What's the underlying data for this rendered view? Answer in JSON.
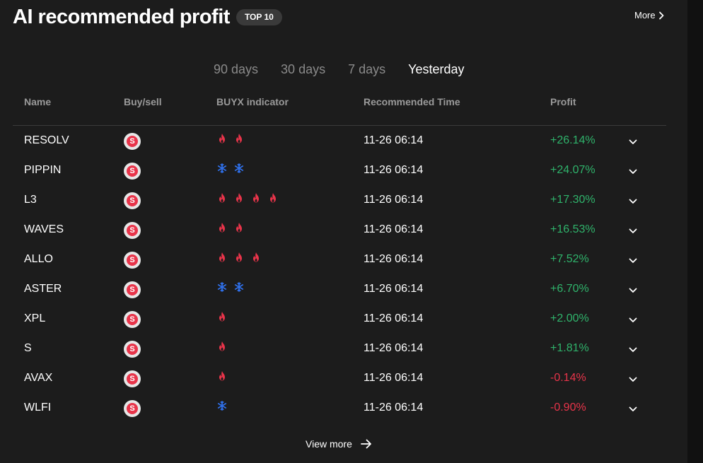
{
  "header": {
    "title": "AI recommended profit",
    "badge": "TOP 10",
    "more_label": "More"
  },
  "tabs": [
    {
      "label": "90 days",
      "active": false
    },
    {
      "label": "30 days",
      "active": false
    },
    {
      "label": "7 days",
      "active": false
    },
    {
      "label": "Yesterday",
      "active": true
    }
  ],
  "columns": {
    "name": "Name",
    "buysell": "Buy/sell",
    "indicator": "BUYX indicator",
    "time": "Recommended Time",
    "profit": "Profit"
  },
  "rows": [
    {
      "name": "RESOLV",
      "action": "S",
      "indicator": [
        "fire-icon",
        "fire-icon"
      ],
      "time": "11-26 06:14",
      "profit": "+26.14%"
    },
    {
      "name": "PIPPIN",
      "action": "S",
      "indicator": [
        "snowflake-icon",
        "snowflake-icon"
      ],
      "time": "11-26 06:14",
      "profit": "+24.07%"
    },
    {
      "name": "L3",
      "action": "S",
      "indicator": [
        "fire-icon",
        "fire-icon",
        "fire-icon",
        "fire-icon"
      ],
      "time": "11-26 06:14",
      "profit": "+17.30%"
    },
    {
      "name": "WAVES",
      "action": "S",
      "indicator": [
        "fire-icon",
        "fire-icon"
      ],
      "time": "11-26 06:14",
      "profit": "+16.53%"
    },
    {
      "name": "ALLO",
      "action": "S",
      "indicator": [
        "fire-icon",
        "fire-icon",
        "fire-icon"
      ],
      "time": "11-26 06:14",
      "profit": "+7.52%"
    },
    {
      "name": "ASTER",
      "action": "S",
      "indicator": [
        "snowflake-icon",
        "snowflake-icon"
      ],
      "time": "11-26 06:14",
      "profit": "+6.70%"
    },
    {
      "name": "XPL",
      "action": "S",
      "indicator": [
        "fire-icon"
      ],
      "time": "11-26 06:14",
      "profit": "+2.00%"
    },
    {
      "name": "S",
      "action": "S",
      "indicator": [
        "fire-icon"
      ],
      "time": "11-26 06:14",
      "profit": "+1.81%"
    },
    {
      "name": "AVAX",
      "action": "S",
      "indicator": [
        "fire-icon"
      ],
      "time": "11-26 06:14",
      "profit": "-0.14%"
    },
    {
      "name": "WLFI",
      "action": "S",
      "indicator": [
        "snowflake-icon"
      ],
      "time": "11-26 06:14",
      "profit": "-0.90%"
    }
  ],
  "footer": {
    "view_more_label": "View more"
  },
  "colors": {
    "positive": "#2fb36b",
    "negative": "#e8344a",
    "fire": "#e8344a",
    "snowflake": "#2f6fe8",
    "background": "#1c1c1c"
  }
}
